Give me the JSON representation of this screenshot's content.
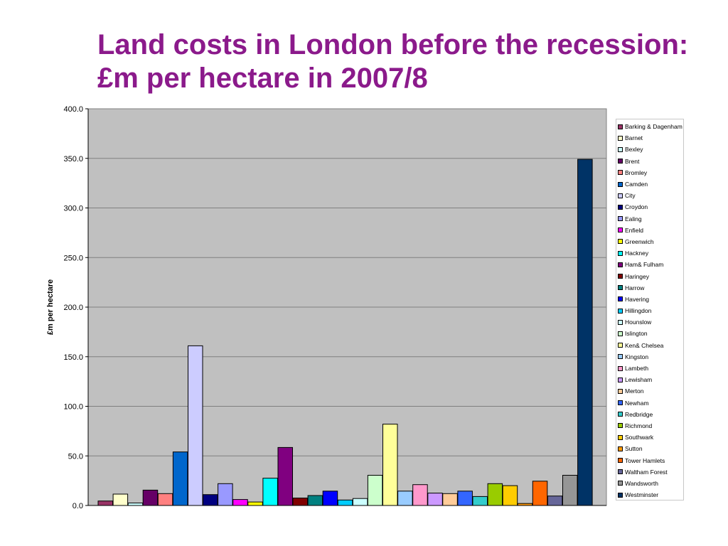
{
  "slide": {
    "title": "Land costs in London before the recession:  £m per hectare in  2007/8"
  },
  "chart_data": {
    "type": "bar",
    "title": "",
    "xlabel": "",
    "ylabel": "£m per hectare",
    "ylim": [
      0,
      400
    ],
    "yticks": [
      "0.0",
      "50.0",
      "100.0",
      "150.0",
      "200.0",
      "250.0",
      "300.0",
      "350.0",
      "400.0"
    ],
    "grid": true,
    "legend_position": "right",
    "series": [
      {
        "name": "Barking & Dagenham",
        "value": 4.5,
        "color": "#993366"
      },
      {
        "name": "Barnet",
        "value": 11.5,
        "color": "#ffffcc"
      },
      {
        "name": "Bexley",
        "value": 2.5,
        "color": "#ccffff"
      },
      {
        "name": "Brent",
        "value": 15.5,
        "color": "#660066"
      },
      {
        "name": "Bromley",
        "value": 12.0,
        "color": "#ff8080"
      },
      {
        "name": "Camden",
        "value": 54.0,
        "color": "#0066cc"
      },
      {
        "name": "City",
        "value": 161.0,
        "color": "#ccccff"
      },
      {
        "name": "Croydon",
        "value": 11.0,
        "color": "#000080"
      },
      {
        "name": "Ealing",
        "value": 22.0,
        "color": "#9999ff"
      },
      {
        "name": "Enfield",
        "value": 6.0,
        "color": "#ff00ff"
      },
      {
        "name": "Greenwich",
        "value": 3.5,
        "color": "#ffff00"
      },
      {
        "name": "Hackney",
        "value": 27.5,
        "color": "#00ffff"
      },
      {
        "name": "Ham& Fulham",
        "value": 58.5,
        "color": "#800080"
      },
      {
        "name": "Haringey",
        "value": 7.5,
        "color": "#800000"
      },
      {
        "name": "Harrow",
        "value": 10.0,
        "color": "#008080"
      },
      {
        "name": "Havering",
        "value": 14.5,
        "color": "#0000ff"
      },
      {
        "name": "Hillingdon",
        "value": 5.5,
        "color": "#00ccff"
      },
      {
        "name": "Hounslow",
        "value": 7.0,
        "color": "#ccffff"
      },
      {
        "name": "Islington",
        "value": 30.5,
        "color": "#ccffcc"
      },
      {
        "name": "Ken& Chelsea",
        "value": 82.0,
        "color": "#ffff99"
      },
      {
        "name": "Kingston",
        "value": 14.5,
        "color": "#99ccff"
      },
      {
        "name": "Lambeth",
        "value": 21.0,
        "color": "#ff99cc"
      },
      {
        "name": "Lewisham",
        "value": 12.5,
        "color": "#cc99ff"
      },
      {
        "name": "Merton",
        "value": 12.0,
        "color": "#ffcc99"
      },
      {
        "name": "Newham",
        "value": 14.5,
        "color": "#3366ff"
      },
      {
        "name": "Redbridge",
        "value": 9.0,
        "color": "#33cccc"
      },
      {
        "name": "Richmond",
        "value": 22.0,
        "color": "#99cc00"
      },
      {
        "name": "Southwark",
        "value": 20.0,
        "color": "#ffcc00"
      },
      {
        "name": "Sutton",
        "value": 2.0,
        "color": "#ff9900"
      },
      {
        "name": "Tower Hamlets",
        "value": 24.5,
        "color": "#ff6600"
      },
      {
        "name": "Waltham Forest",
        "value": 9.5,
        "color": "#666699"
      },
      {
        "name": "Wandsworth",
        "value": 30.5,
        "color": "#969696"
      },
      {
        "name": "Westminster",
        "value": 349.0,
        "color": "#003366"
      }
    ]
  }
}
